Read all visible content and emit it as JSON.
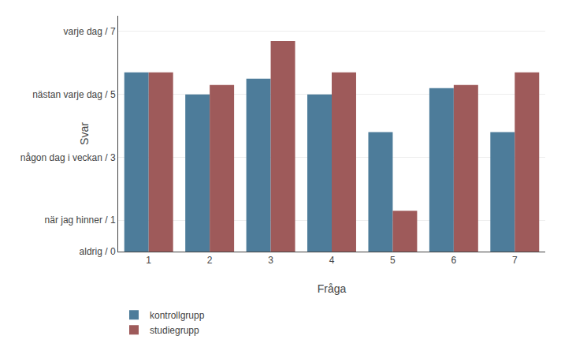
{
  "chart_data": {
    "type": "bar",
    "xlabel": "Fråga",
    "ylabel": "Svar",
    "categories": [
      "1",
      "2",
      "3",
      "4",
      "5",
      "6",
      "7"
    ],
    "series": [
      {
        "name": "kontrollgrupp",
        "color": "#4d7c9a",
        "values": [
          5.7,
          5.0,
          5.5,
          5.0,
          3.8,
          5.2,
          3.8
        ]
      },
      {
        "name": "studiegrupp",
        "color": "#9e5a5a",
        "values": [
          5.7,
          5.3,
          6.7,
          5.7,
          1.3,
          5.3,
          5.7
        ]
      }
    ],
    "ylim": [
      0,
      7.5
    ],
    "yticks": [
      {
        "value": 0,
        "label": "aldrig / 0"
      },
      {
        "value": 1,
        "label": "när jag hinner / 1"
      },
      {
        "value": 3,
        "label": "någon dag i veckan / 3"
      },
      {
        "value": 5,
        "label": "nästan varje dag / 5"
      },
      {
        "value": 7,
        "label": "varje dag / 7"
      }
    ],
    "grid": true,
    "legend": "lower left"
  }
}
